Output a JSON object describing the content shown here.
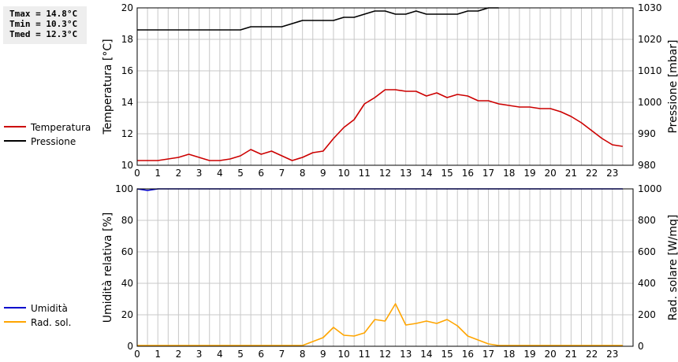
{
  "stats": [
    "Tmax = 14.8°C",
    "Tmin = 10.3°C",
    "Tmed = 12.3°C"
  ],
  "colors": {
    "temperature": "#cc0000",
    "pressure": "#000000",
    "humidity": "#0000cc",
    "radiation": "#ffa500",
    "grid": "#c8c8c8"
  },
  "chart_data": [
    {
      "type": "line",
      "xlim": [
        0,
        24
      ],
      "x_ticks": [
        0,
        1,
        2,
        3,
        4,
        5,
        6,
        7,
        8,
        9,
        10,
        11,
        12,
        13,
        14,
        15,
        16,
        17,
        18,
        19,
        20,
        21,
        22,
        23
      ],
      "left_axis": {
        "label": "Temperatura [°C]",
        "ylim": [
          10,
          20
        ],
        "ticks": [
          10,
          12,
          14,
          16,
          18,
          20
        ]
      },
      "right_axis": {
        "label": "Pressione [mbar]",
        "ylim": [
          980,
          1030
        ],
        "ticks": [
          980,
          990,
          1000,
          1010,
          1020,
          1030
        ]
      },
      "grid": true,
      "legend": "left",
      "series": [
        {
          "name": "Temperatura",
          "axis": "left",
          "color": "#cc0000",
          "x": [
            0,
            0.5,
            1,
            1.5,
            2,
            2.5,
            3,
            3.5,
            4,
            4.5,
            5,
            5.5,
            6,
            6.5,
            7,
            7.5,
            8,
            8.5,
            9,
            9.5,
            10,
            10.5,
            11,
            11.5,
            12,
            12.5,
            13,
            13.5,
            14,
            14.5,
            15,
            15.5,
            16,
            16.5,
            17,
            17.5,
            18,
            18.5,
            19,
            19.5,
            20,
            20.5,
            21,
            21.5,
            22,
            22.5,
            23,
            23.5
          ],
          "values": [
            10.3,
            10.3,
            10.3,
            10.4,
            10.5,
            10.7,
            10.5,
            10.3,
            10.3,
            10.4,
            10.6,
            11.0,
            10.7,
            10.9,
            10.6,
            10.3,
            10.5,
            10.8,
            10.9,
            11.7,
            12.4,
            12.9,
            13.9,
            14.3,
            14.8,
            14.8,
            14.7,
            14.7,
            14.4,
            14.6,
            14.3,
            14.5,
            14.4,
            14.1,
            14.1,
            13.9,
            13.8,
            13.7,
            13.7,
            13.6,
            13.6,
            13.4,
            13.1,
            12.7,
            12.2,
            11.7,
            11.3,
            11.2
          ]
        },
        {
          "name": "Pressione",
          "axis": "right",
          "color": "#000000",
          "x": [
            0,
            0.5,
            1,
            1.5,
            2,
            2.5,
            3,
            3.5,
            4,
            4.5,
            5,
            5.5,
            6,
            6.5,
            7,
            7.5,
            8,
            8.5,
            9,
            9.5,
            10,
            10.5,
            11,
            11.5,
            12,
            12.5,
            13,
            13.5,
            14,
            14.5,
            15,
            15.5,
            16,
            16.5,
            17,
            17.5
          ],
          "values": [
            1023,
            1023,
            1023,
            1023,
            1023,
            1023,
            1023,
            1023,
            1023,
            1023,
            1023,
            1024,
            1024,
            1024,
            1024,
            1025,
            1026,
            1026,
            1026,
            1026,
            1027,
            1027,
            1028,
            1029,
            1029,
            1028,
            1028,
            1029,
            1028,
            1028,
            1028,
            1028,
            1029,
            1029,
            1030,
            1030
          ]
        }
      ]
    },
    {
      "type": "line",
      "xlim": [
        0,
        24
      ],
      "x_ticks": [
        0,
        1,
        2,
        3,
        4,
        5,
        6,
        7,
        8,
        9,
        10,
        11,
        12,
        13,
        14,
        15,
        16,
        17,
        18,
        19,
        20,
        21,
        22,
        23
      ],
      "left_axis": {
        "label": "Umidità relativa [%]",
        "ylim": [
          0,
          100
        ],
        "ticks": [
          0,
          20,
          40,
          60,
          80,
          100
        ]
      },
      "right_axis": {
        "label": "Rad. solare [W/mq]",
        "ylim": [
          0,
          1000
        ],
        "ticks": [
          0,
          200,
          400,
          600,
          800,
          1000
        ]
      },
      "grid": true,
      "legend": "left",
      "series": [
        {
          "name": "Umidità",
          "axis": "left",
          "color": "#0000cc",
          "x": [
            0,
            0.5,
            1,
            1.5,
            2,
            2.5,
            3,
            3.5,
            4,
            4.5,
            5,
            5.5,
            6,
            6.5,
            7,
            7.5,
            8,
            8.5,
            9,
            9.5,
            10,
            10.5,
            11,
            11.5,
            12,
            12.5,
            13,
            13.5,
            14,
            14.5,
            15,
            15.5,
            16,
            16.5,
            17,
            17.5,
            18,
            18.5,
            19,
            19.5,
            20,
            20.5,
            21,
            21.5,
            22,
            22.5,
            23,
            23.5
          ],
          "values": [
            100,
            99,
            100,
            100,
            100,
            100,
            100,
            100,
            100,
            100,
            100,
            100,
            100,
            100,
            100,
            100,
            100,
            100,
            100,
            100,
            100,
            100,
            100,
            100,
            100,
            100,
            100,
            100,
            100,
            100,
            100,
            100,
            100,
            100,
            100,
            100,
            100,
            100,
            100,
            100,
            100,
            100,
            100,
            100,
            100,
            100,
            100,
            100
          ]
        },
        {
          "name": "Rad. sol.",
          "axis": "right",
          "color": "#ffa500",
          "x": [
            0,
            0.5,
            1,
            1.5,
            2,
            2.5,
            3,
            3.5,
            4,
            4.5,
            5,
            5.5,
            6,
            6.5,
            7,
            7.5,
            8,
            8.5,
            9,
            9.5,
            10,
            10.5,
            11,
            11.5,
            12,
            12.5,
            13,
            13.5,
            14,
            14.5,
            15,
            15.5,
            16,
            16.5,
            17,
            17.5,
            18,
            18.5,
            19,
            19.5,
            20,
            20.5,
            21,
            21.5,
            22,
            22.5,
            23,
            23.5
          ],
          "values": [
            5,
            5,
            5,
            5,
            5,
            5,
            5,
            5,
            5,
            5,
            5,
            5,
            5,
            5,
            5,
            5,
            5,
            30,
            55,
            120,
            70,
            65,
            85,
            170,
            160,
            270,
            135,
            145,
            160,
            145,
            170,
            130,
            65,
            40,
            15,
            5,
            5,
            5,
            5,
            5,
            5,
            5,
            5,
            5,
            5,
            5,
            5,
            5
          ]
        }
      ]
    }
  ]
}
